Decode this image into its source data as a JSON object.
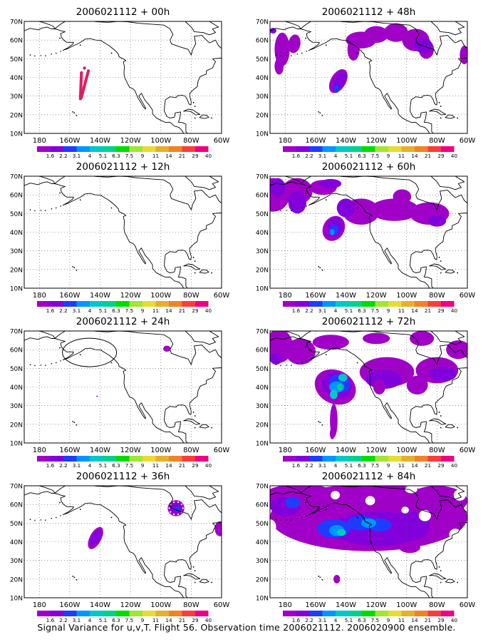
{
  "caption": "Signal Variance for u,v,T. Flight 56. Observation time 2006021112. 2006020900 ensemble.",
  "lat_labels": [
    "70N",
    "60N",
    "50N",
    "40N",
    "30N",
    "20N",
    "10N"
  ],
  "lon_labels": [
    "180",
    "160W",
    "140W",
    "120W",
    "100W",
    "80W",
    "60W"
  ],
  "legend_values": [
    "1.6",
    "2.2",
    "3.1",
    "4",
    "5.1",
    "6.3",
    "7.5",
    "9",
    "11",
    "14",
    "21",
    "29",
    "40"
  ],
  "legend_colors": [
    "#a000c8",
    "#8200dc",
    "#1e3cff",
    "#0096ff",
    "#00c8c8",
    "#00d28c",
    "#00dc00",
    "#a0e632",
    "#e6dc32",
    "#e6af2d",
    "#f08228",
    "#fa3c3c",
    "#f00082"
  ],
  "region": {
    "lon_range": [
      -190,
      -60
    ],
    "lat_range": [
      10,
      70
    ]
  },
  "panels": [
    {
      "id": "00h",
      "title": "2006021112 + 00h",
      "column": 0,
      "row": 0
    },
    {
      "id": "48h",
      "title": "2006021112 + 48h",
      "column": 1,
      "row": 0
    },
    {
      "id": "12h",
      "title": "2006021112 + 12h",
      "column": 0,
      "row": 1
    },
    {
      "id": "60h",
      "title": "2006021112 + 60h",
      "column": 1,
      "row": 1
    },
    {
      "id": "24h",
      "title": "2006021112 + 24h",
      "column": 0,
      "row": 2
    },
    {
      "id": "72h",
      "title": "2006021112 + 72h",
      "column": 1,
      "row": 2
    },
    {
      "id": "36h",
      "title": "2006021112 + 36h",
      "column": 0,
      "row": 3
    },
    {
      "id": "84h",
      "title": "2006021112 + 84h",
      "column": 1,
      "row": 3
    }
  ]
}
